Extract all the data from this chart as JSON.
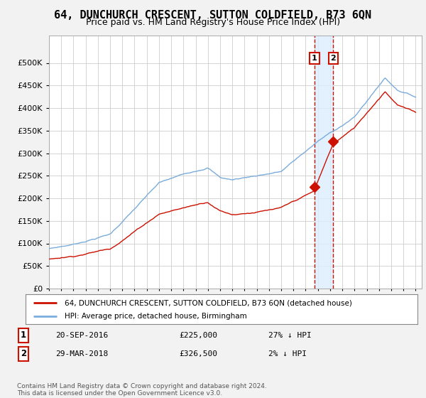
{
  "title": "64, DUNCHURCH CRESCENT, SUTTON COLDFIELD, B73 6QN",
  "subtitle": "Price paid vs. HM Land Registry's House Price Index (HPI)",
  "ylim": [
    0,
    560000
  ],
  "yticks": [
    0,
    50000,
    100000,
    150000,
    200000,
    250000,
    300000,
    350000,
    400000,
    450000,
    500000
  ],
  "xlim": [
    1995.0,
    2025.5
  ],
  "bg_color": "#f2f2f2",
  "plot_bg": "#ffffff",
  "grid_color": "#cccccc",
  "hpi_color": "#7aacdc",
  "price_color": "#cc1100",
  "shade_color": "#ddeeff",
  "transaction1": {
    "date_x": 2016.72,
    "price": 225000,
    "label": "1"
  },
  "transaction2": {
    "date_x": 2018.25,
    "price": 326500,
    "label": "2"
  },
  "legend_entry1": "64, DUNCHURCH CRESCENT, SUTTON COLDFIELD, B73 6QN (detached house)",
  "legend_entry2": "HPI: Average price, detached house, Birmingham",
  "footnote": "Contains HM Land Registry data © Crown copyright and database right 2024.\nThis data is licensed under the Open Government Licence v3.0.",
  "title_fontsize": 11,
  "subtitle_fontsize": 9
}
